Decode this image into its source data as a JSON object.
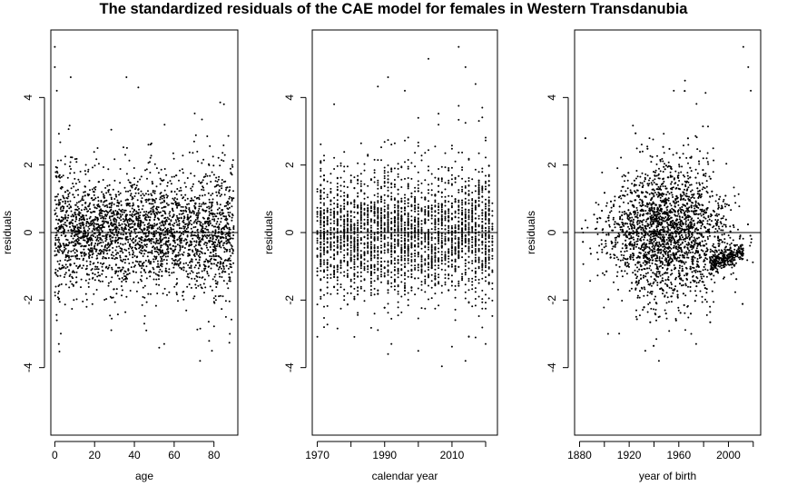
{
  "title": "The standardized residuals of the CAE model for females in Western Transdanubia",
  "chart_data": [
    {
      "type": "scatter",
      "xlabel": "age",
      "ylabel": "residuals",
      "xlim": [
        -2,
        92
      ],
      "ylim": [
        -6,
        6
      ],
      "x_ticks": [
        0,
        20,
        40,
        60,
        80
      ],
      "y_ticks": [
        -4,
        -2,
        0,
        2,
        4
      ],
      "reference_line_y": 0,
      "x_range_of_points": [
        0,
        90
      ],
      "point_count_approx": 5000,
      "points_sample": [
        {
          "x": 0,
          "y": 5.5
        },
        {
          "x": 0,
          "y": 4.9
        },
        {
          "x": 1,
          "y": 4.2
        },
        {
          "x": 8,
          "y": 4.6
        },
        {
          "x": 36,
          "y": 4.6
        },
        {
          "x": 42,
          "y": 4.3
        },
        {
          "x": 85,
          "y": 3.8
        },
        {
          "x": 2,
          "y": -3.3
        },
        {
          "x": 1,
          "y": -2.6
        },
        {
          "x": 55,
          "y": -3.3
        },
        {
          "x": 73,
          "y": -3.8
        },
        {
          "x": 79,
          "y": -3.5
        },
        {
          "x": 46,
          "y": -2.9
        },
        {
          "x": 88,
          "y": -3.0
        }
      ]
    },
    {
      "type": "scatter",
      "xlabel": "calendar year",
      "ylabel": "residuals",
      "xlim": [
        1968.5,
        2023.5
      ],
      "ylim": [
        -6,
        6
      ],
      "x_ticks": [
        1970,
        1990,
        2010
      ],
      "x_minor_ticks": [
        1980,
        2000,
        2020
      ],
      "y_ticks": [
        -4,
        -2,
        0,
        2,
        4
      ],
      "reference_line_y": 0,
      "x_range_of_points": [
        1970,
        2022
      ],
      "point_count_approx": 5000,
      "points_sample": [
        {
          "x": 2012,
          "y": 5.5
        },
        {
          "x": 2014,
          "y": 4.9
        },
        {
          "x": 2017,
          "y": 4.4
        },
        {
          "x": 1991,
          "y": 4.6
        },
        {
          "x": 1996,
          "y": 4.2
        },
        {
          "x": 1975,
          "y": 3.8
        },
        {
          "x": 2014,
          "y": -3.8
        },
        {
          "x": 2020,
          "y": -3.3
        },
        {
          "x": 1992,
          "y": -3.3
        },
        {
          "x": 1972,
          "y": -2.8
        }
      ]
    },
    {
      "type": "scatter",
      "xlabel": "year of birth",
      "ylabel": "residuals",
      "xlim": [
        1876,
        2026
      ],
      "ylim": [
        -6,
        6
      ],
      "x_ticks": [
        1880,
        1920,
        1960,
        2000
      ],
      "x_minor_ticks": [
        1900,
        1940,
        1980,
        2020
      ],
      "y_ticks": [
        -4,
        -2,
        0,
        2,
        4
      ],
      "reference_line_y": 0,
      "x_range_of_points": [
        1880,
        2022
      ],
      "point_count_approx": 5000,
      "points_sample": [
        {
          "x": 2012,
          "y": 5.5
        },
        {
          "x": 2016,
          "y": 4.9
        },
        {
          "x": 2018,
          "y": 4.2
        },
        {
          "x": 1956,
          "y": 4.2
        },
        {
          "x": 1965,
          "y": 4.5
        },
        {
          "x": 1933,
          "y": -3.5
        },
        {
          "x": 1944,
          "y": -3.8
        },
        {
          "x": 1974,
          "y": -3.3
        },
        {
          "x": 1970,
          "y": -3.0
        },
        {
          "x": 1903,
          "y": -3.0
        }
      ]
    }
  ]
}
